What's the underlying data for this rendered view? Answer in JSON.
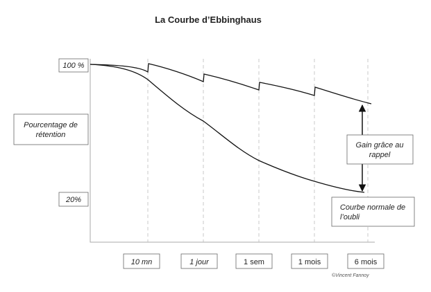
{
  "title": "La Courbe d’Ebbinghaus",
  "y_labels": [
    "100 %",
    "20%"
  ],
  "y_axis_title": [
    "Pourcentage de",
    "rétention"
  ],
  "x_labels": [
    "10 mn",
    "1 jour",
    "1 sem",
    "1 mois",
    "6 mois"
  ],
  "annotations": {
    "gain": [
      "Gain grâce au",
      "rappel"
    ],
    "forgetting": [
      "Courbe normale de",
      "l’oubli"
    ]
  },
  "copyright": "©Vincent Fannoy"
}
